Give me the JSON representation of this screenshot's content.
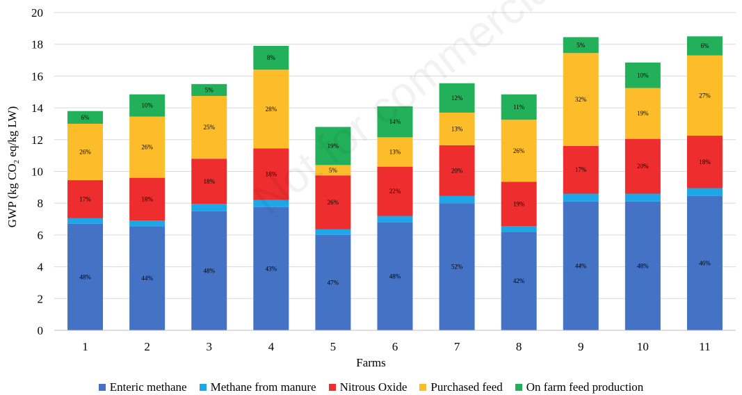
{
  "chart_data": {
    "type": "bar",
    "stacked": true,
    "title": "",
    "xlabel": "Farms",
    "ylabel_parts": {
      "before": "GWP (kg CO",
      "sub": "2",
      "after": " eq/kg LW)"
    },
    "ylim": [
      0,
      20
    ],
    "yticks": [
      0,
      2,
      4,
      6,
      8,
      10,
      12,
      14,
      16,
      18,
      20
    ],
    "grid": true,
    "legend_position": "bottom",
    "categories": [
      "1",
      "2",
      "3",
      "4",
      "5",
      "6",
      "7",
      "8",
      "9",
      "10",
      "11"
    ],
    "series": [
      {
        "name": "Enteric methane",
        "color": "#4472C4",
        "values": [
          6.7,
          6.55,
          7.5,
          7.75,
          6.0,
          6.8,
          8.0,
          6.2,
          8.1,
          8.1,
          8.45
        ],
        "labels": [
          "48%",
          "44%",
          "48%",
          "43%",
          "47%",
          "48%",
          "52%",
          "42%",
          "44%",
          "48%",
          "46%"
        ]
      },
      {
        "name": "Methane from manure",
        "color": "#1EA7E6",
        "values": [
          0.35,
          0.35,
          0.45,
          0.45,
          0.35,
          0.4,
          0.45,
          0.35,
          0.5,
          0.5,
          0.5
        ],
        "labels": [
          "",
          "",
          "",
          "",
          "",
          "",
          "",
          "",
          "",
          "",
          ""
        ]
      },
      {
        "name": "Nitrous Oxide",
        "color": "#EE2E2E",
        "values": [
          2.4,
          2.7,
          2.85,
          3.25,
          3.4,
          3.1,
          3.2,
          2.8,
          3.0,
          3.45,
          3.3
        ],
        "labels": [
          "17%",
          "18%",
          "18%",
          "18%",
          "26%",
          "22%",
          "20%",
          "19%",
          "17%",
          "20%",
          "18%"
        ]
      },
      {
        "name": "Purchased feed",
        "color": "#FDBD2A",
        "values": [
          3.55,
          3.85,
          3.95,
          4.95,
          0.65,
          1.85,
          2.05,
          3.9,
          5.85,
          3.2,
          5.05
        ],
        "labels": [
          "26%",
          "26%",
          "25%",
          "28%",
          "5%",
          "13%",
          "13%",
          "26%",
          "32%",
          "19%",
          "27%"
        ]
      },
      {
        "name": "On farm feed production",
        "color": "#22B15A",
        "values": [
          0.8,
          1.4,
          0.75,
          1.5,
          2.4,
          1.95,
          1.85,
          1.6,
          1.0,
          1.6,
          1.2
        ],
        "labels": [
          "6%",
          "10%",
          "5%",
          "8%",
          "19%",
          "14%",
          "12%",
          "11%",
          "5%",
          "10%",
          "6%"
        ]
      }
    ]
  },
  "watermark": "Not for commercial use only"
}
